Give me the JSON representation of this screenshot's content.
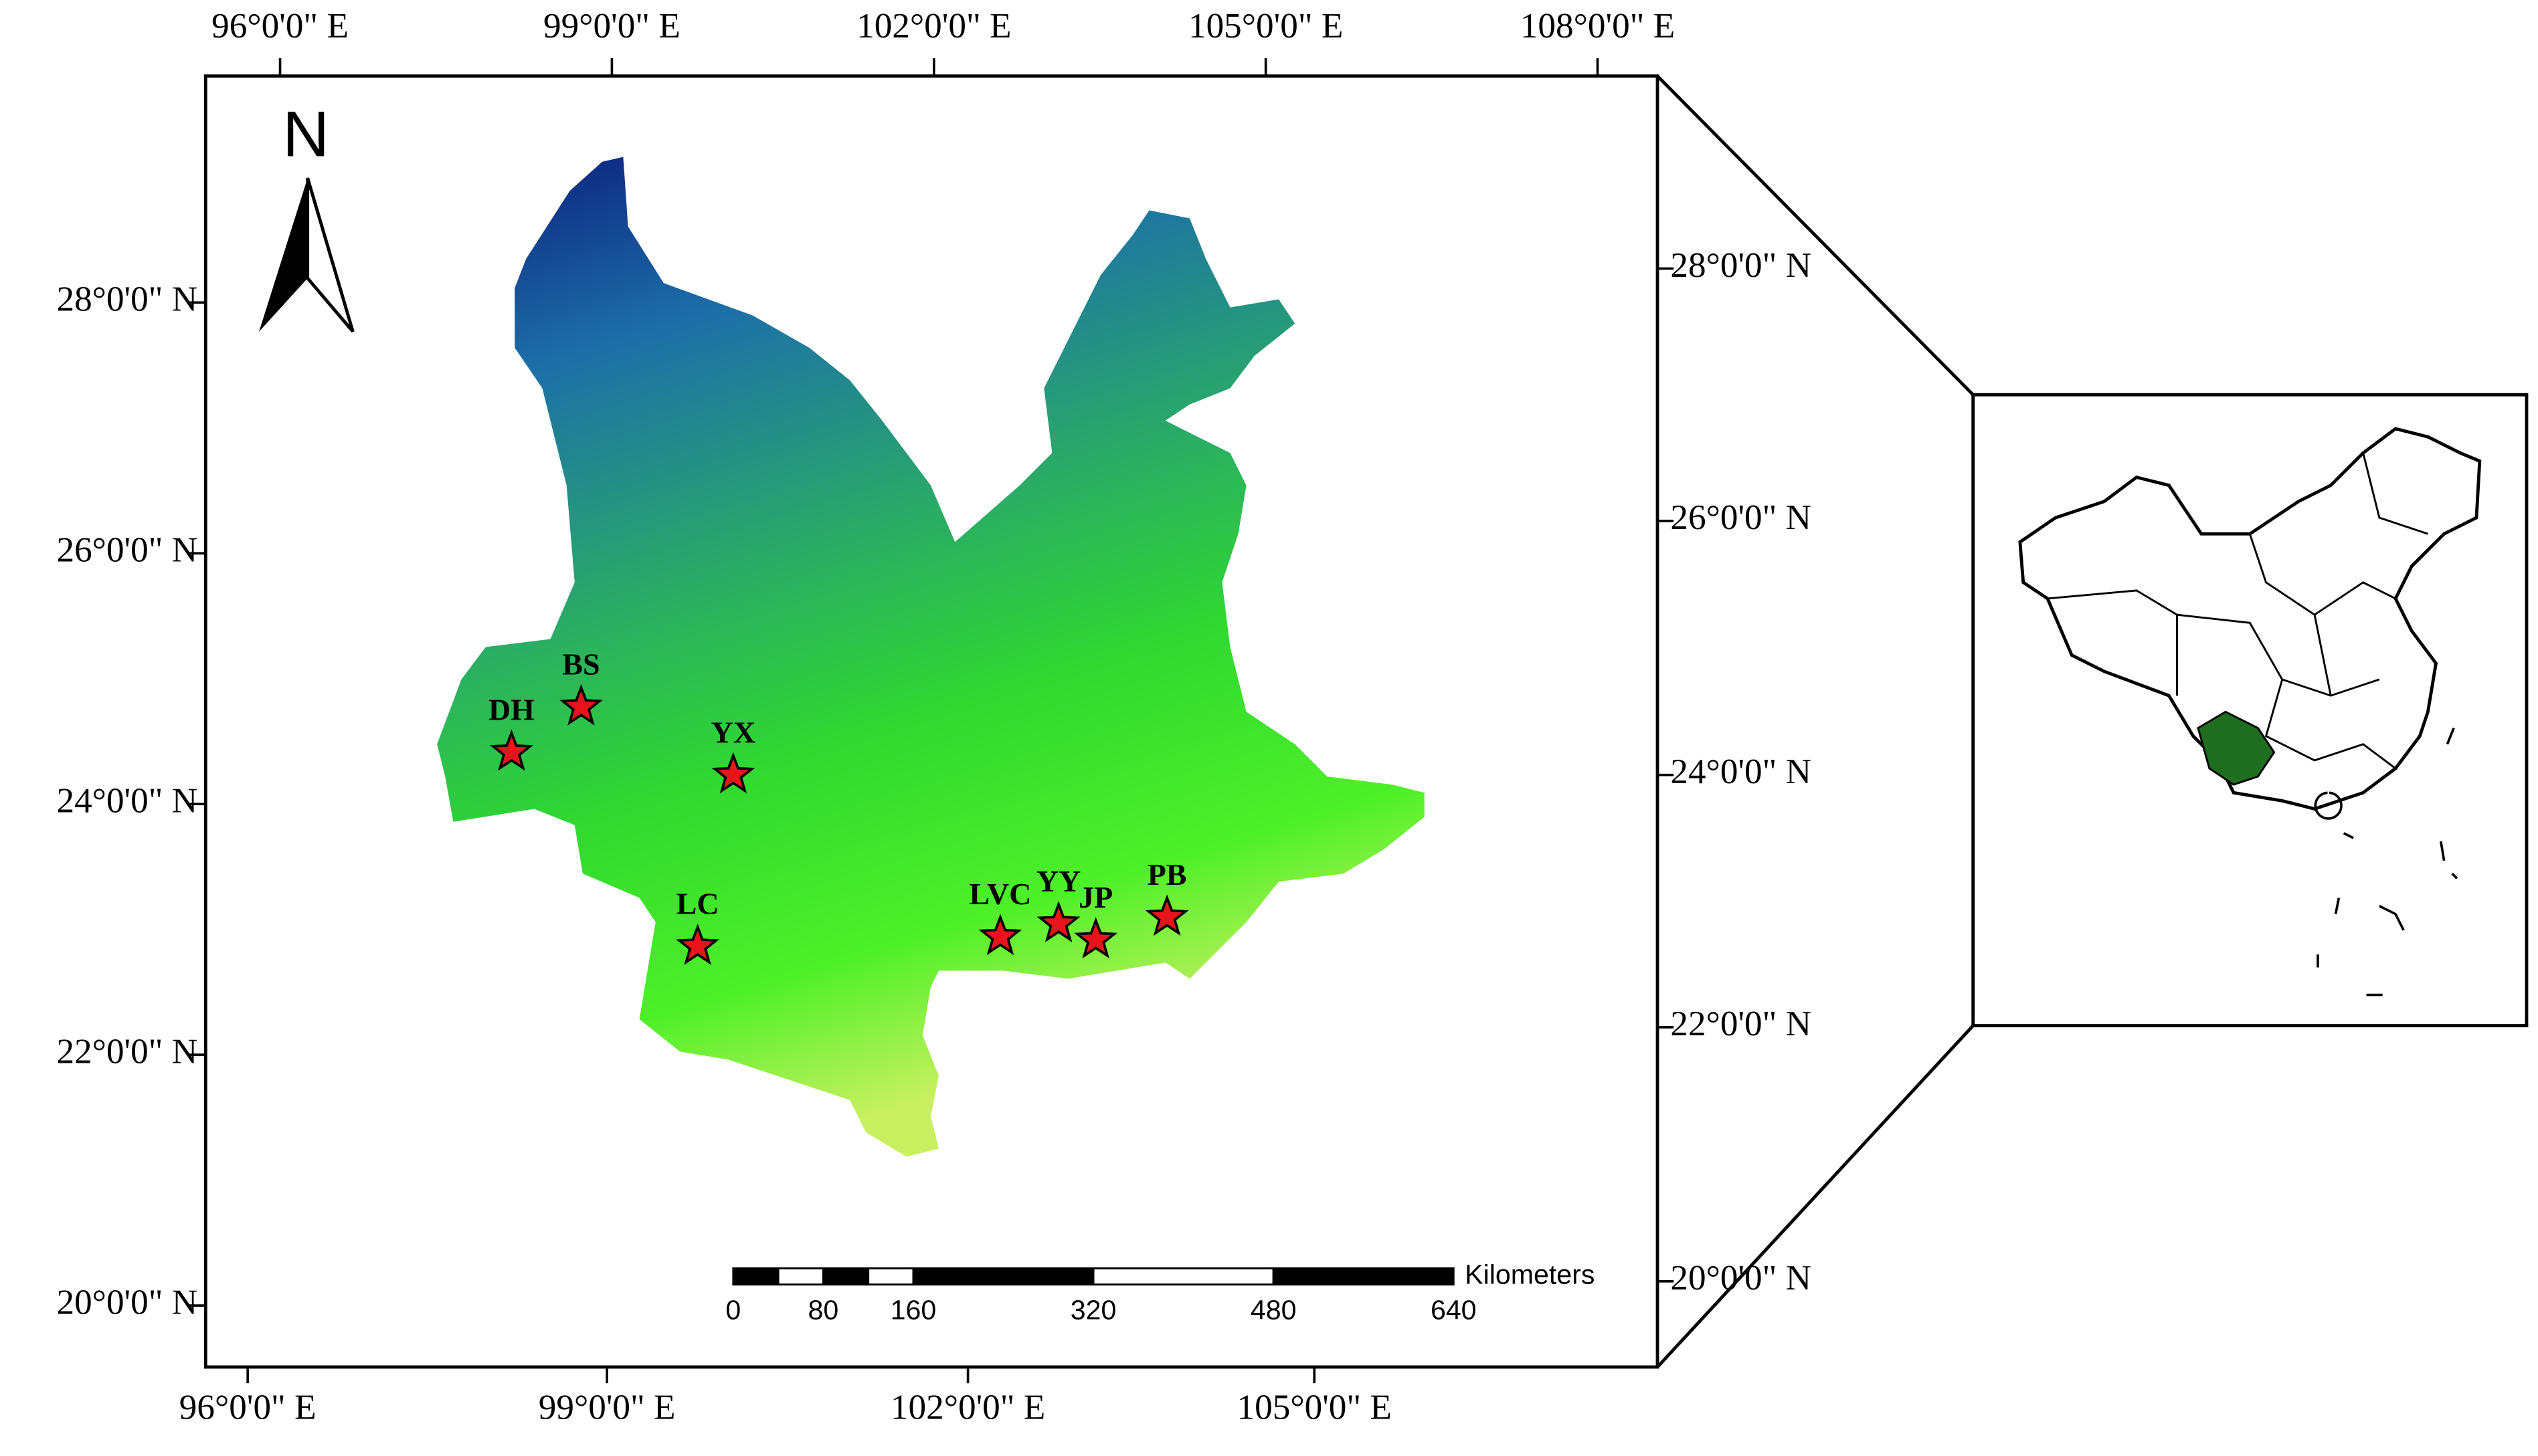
{
  "north_label": "N",
  "top_axis": [
    "96°0'0\" E",
    "99°0'0\" E",
    "102°0'0\" E",
    "105°0'0\" E",
    "108°0'0\" E"
  ],
  "bottom_axis": [
    "96°0'0\" E",
    "99°0'0\" E",
    "102°0'0\" E",
    "105°0'0\" E"
  ],
  "left_axis": [
    "28°0'0\" N",
    "26°0'0\" N",
    "24°0'0\" N",
    "22°0'0\" N",
    "20°0'0\" N"
  ],
  "right_axis": [
    "28°0'0\" N",
    "26°0'0\" N",
    "24°0'0\" N",
    "22°0'0\" N",
    "20°0'0\" N"
  ],
  "sites": [
    "DH",
    "BS",
    "YX",
    "LC",
    "LVC",
    "YY",
    "JP",
    "PB"
  ],
  "scale_bar": {
    "unit": "Kilometers",
    "ticks": [
      0,
      80,
      160,
      320,
      480,
      640
    ]
  }
}
